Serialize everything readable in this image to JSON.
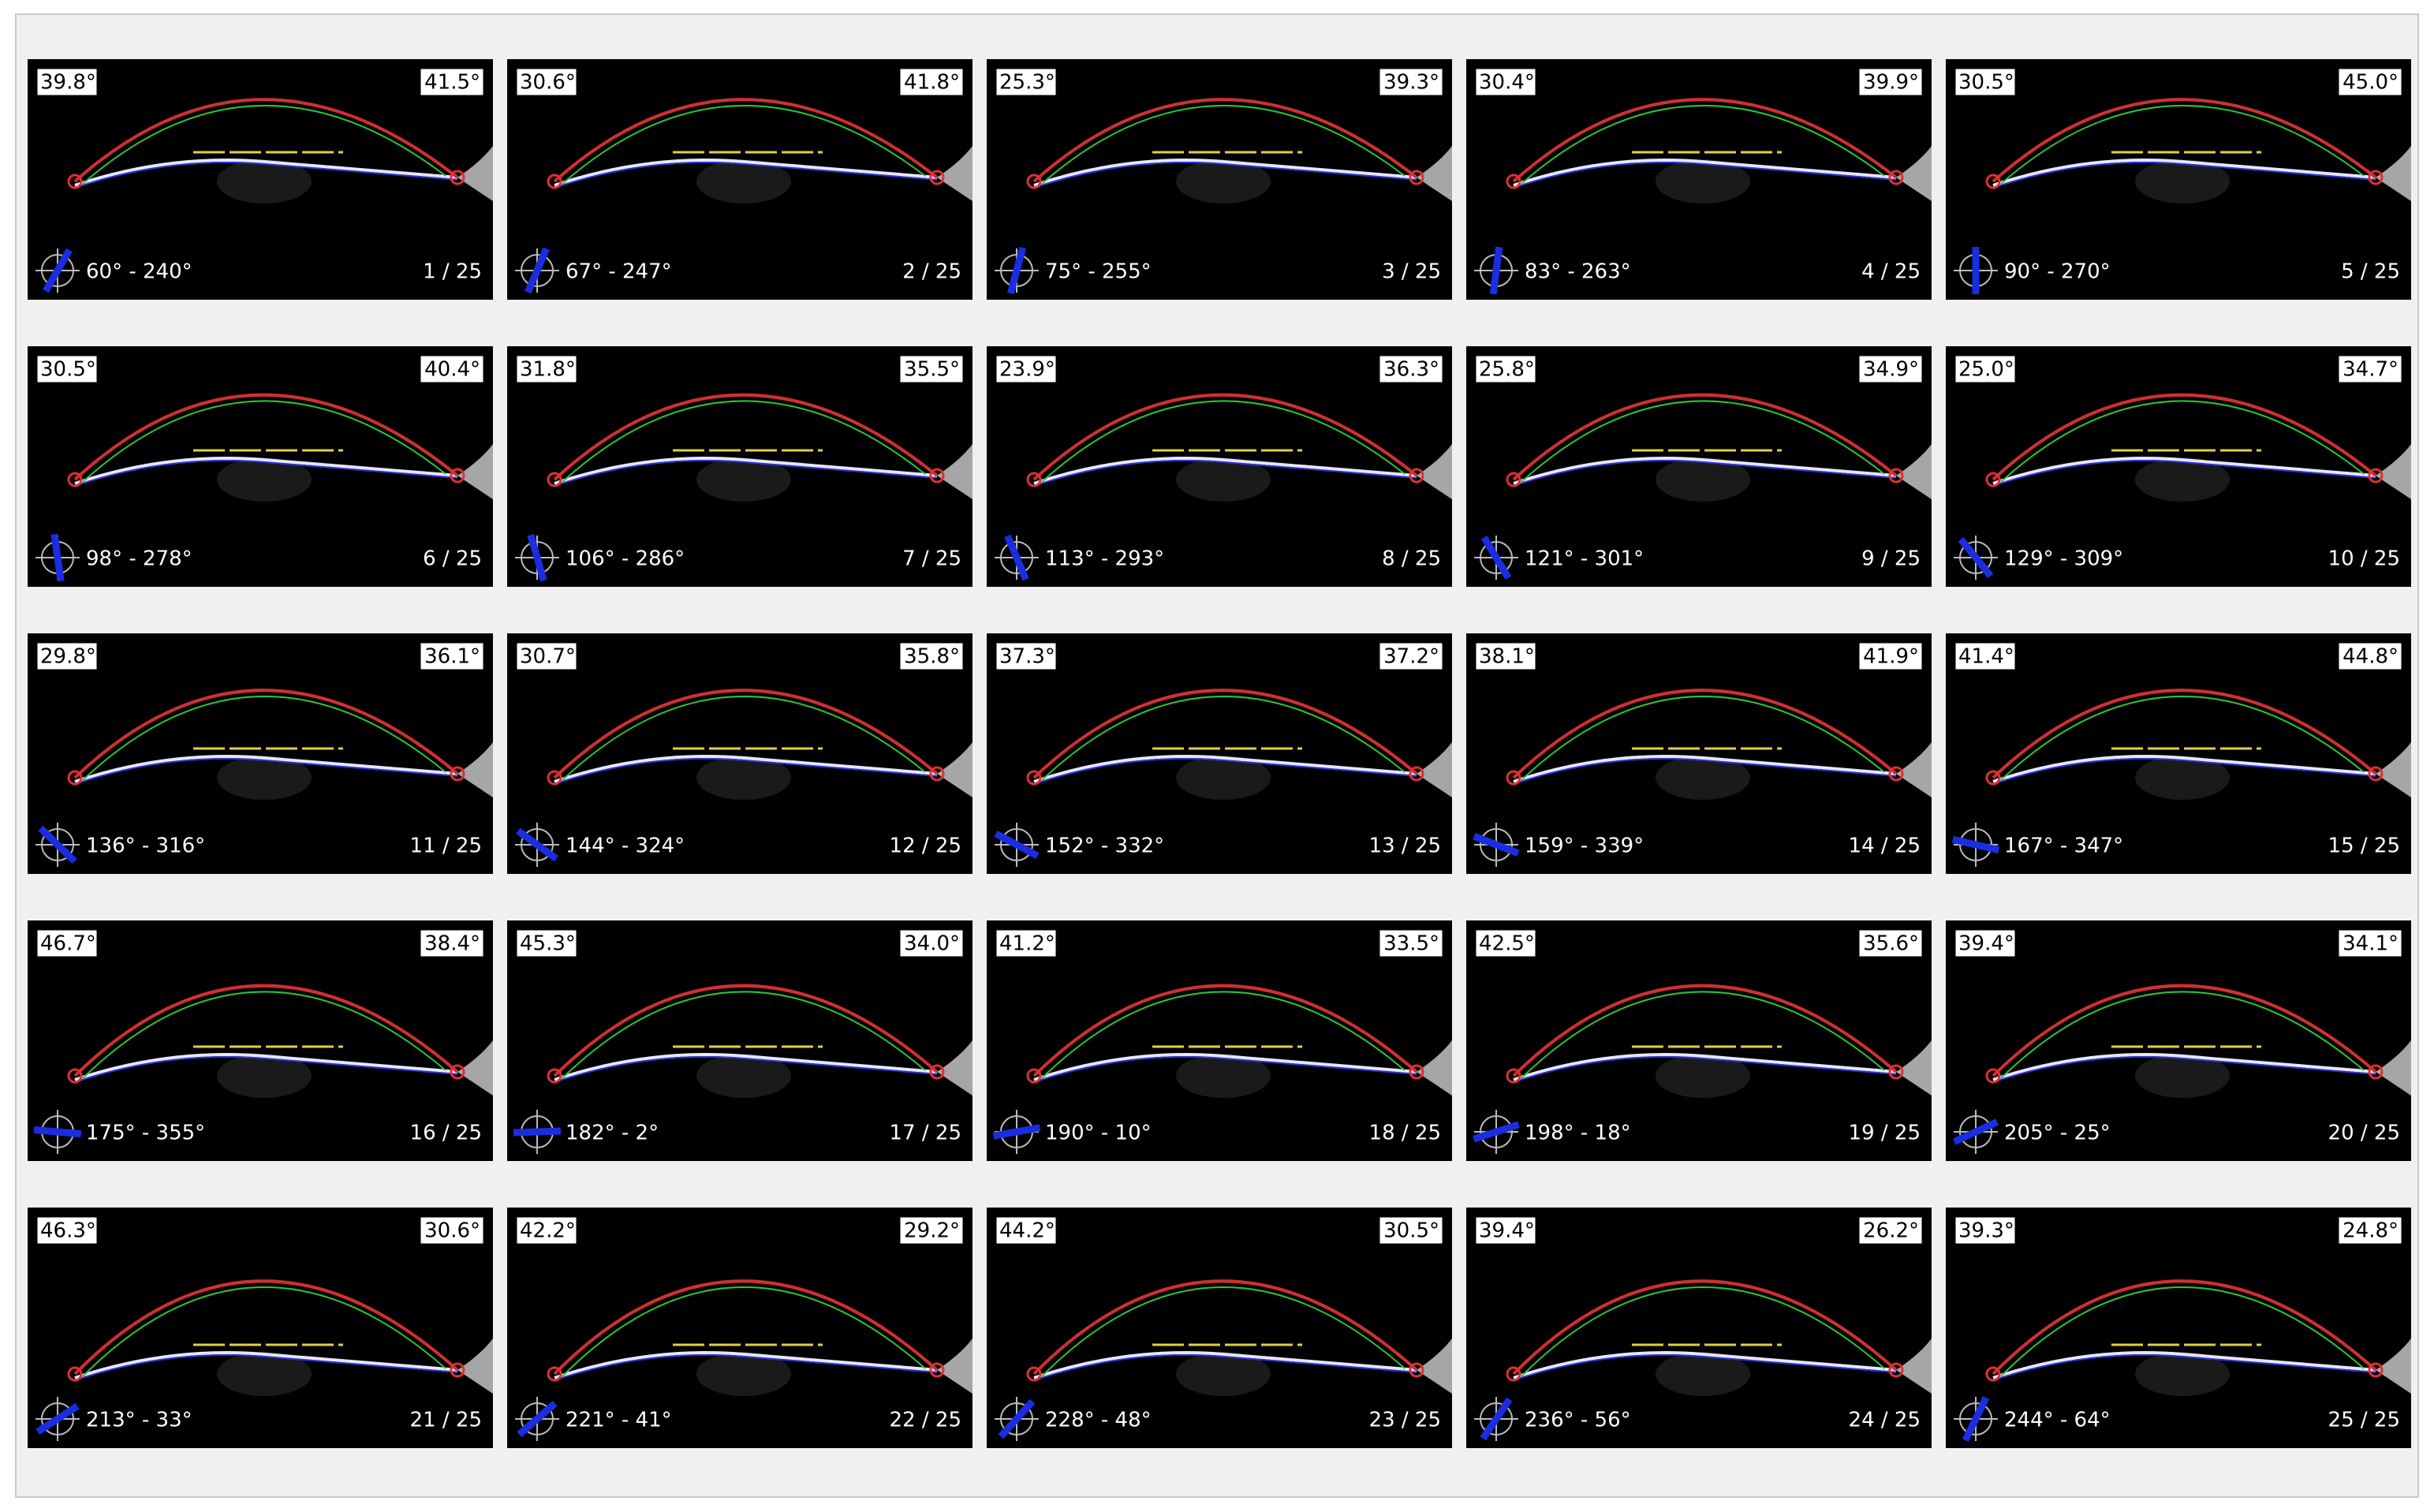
{
  "tiles": [
    {
      "left": "39.8°",
      "right": "41.5°",
      "meridian": "60° - 240°",
      "index": "1 / 25"
    },
    {
      "left": "30.6°",
      "right": "41.8°",
      "meridian": "67° - 247°",
      "index": "2 / 25"
    },
    {
      "left": "25.3°",
      "right": "39.3°",
      "meridian": "75° - 255°",
      "index": "3 / 25"
    },
    {
      "left": "30.4°",
      "right": "39.9°",
      "meridian": "83° - 263°",
      "index": "4 / 25"
    },
    {
      "left": "30.5°",
      "right": "45.0°",
      "meridian": "90° - 270°",
      "index": "5 / 25"
    },
    {
      "left": "30.5°",
      "right": "40.4°",
      "meridian": "98° - 278°",
      "index": "6 / 25"
    },
    {
      "left": "31.8°",
      "right": "35.5°",
      "meridian": "106° - 286°",
      "index": "7 / 25"
    },
    {
      "left": "23.9°",
      "right": "36.3°",
      "meridian": "113° - 293°",
      "index": "8 / 25"
    },
    {
      "left": "25.8°",
      "right": "34.9°",
      "meridian": "121° - 301°",
      "index": "9 / 25"
    },
    {
      "left": "25.0°",
      "right": "34.7°",
      "meridian": "129° - 309°",
      "index": "10 / 25"
    },
    {
      "left": "29.8°",
      "right": "36.1°",
      "meridian": "136° - 316°",
      "index": "11 / 25"
    },
    {
      "left": "30.7°",
      "right": "35.8°",
      "meridian": "144° - 324°",
      "index": "12 / 25"
    },
    {
      "left": "37.3°",
      "right": "37.2°",
      "meridian": "152° - 332°",
      "index": "13 / 25"
    },
    {
      "left": "38.1°",
      "right": "41.9°",
      "meridian": "159° - 339°",
      "index": "14 / 25"
    },
    {
      "left": "41.4°",
      "right": "44.8°",
      "meridian": "167° - 347°",
      "index": "15 / 25"
    },
    {
      "left": "46.7°",
      "right": "38.4°",
      "meridian": "175° - 355°",
      "index": "16 / 25"
    },
    {
      "left": "45.3°",
      "right": "34.0°",
      "meridian": "182° - 2°",
      "index": "17 / 25"
    },
    {
      "left": "41.2°",
      "right": "33.5°",
      "meridian": "190° - 10°",
      "index": "18 / 25"
    },
    {
      "left": "42.5°",
      "right": "35.6°",
      "meridian": "198° - 18°",
      "index": "19 / 25"
    },
    {
      "left": "39.4°",
      "right": "34.1°",
      "meridian": "205° - 25°",
      "index": "20 / 25"
    },
    {
      "left": "46.3°",
      "right": "30.6°",
      "meridian": "213° - 33°",
      "index": "21 / 25"
    },
    {
      "left": "42.2°",
      "right": "29.2°",
      "meridian": "221° - 41°",
      "index": "22 / 25"
    },
    {
      "left": "44.2°",
      "right": "30.5°",
      "meridian": "228° - 48°",
      "index": "23 / 25"
    },
    {
      "left": "39.4°",
      "right": "26.2°",
      "meridian": "236° - 56°",
      "index": "24 / 25"
    },
    {
      "left": "39.3°",
      "right": "24.8°",
      "meridian": "244° - 64°",
      "index": "25 / 25"
    }
  ]
}
